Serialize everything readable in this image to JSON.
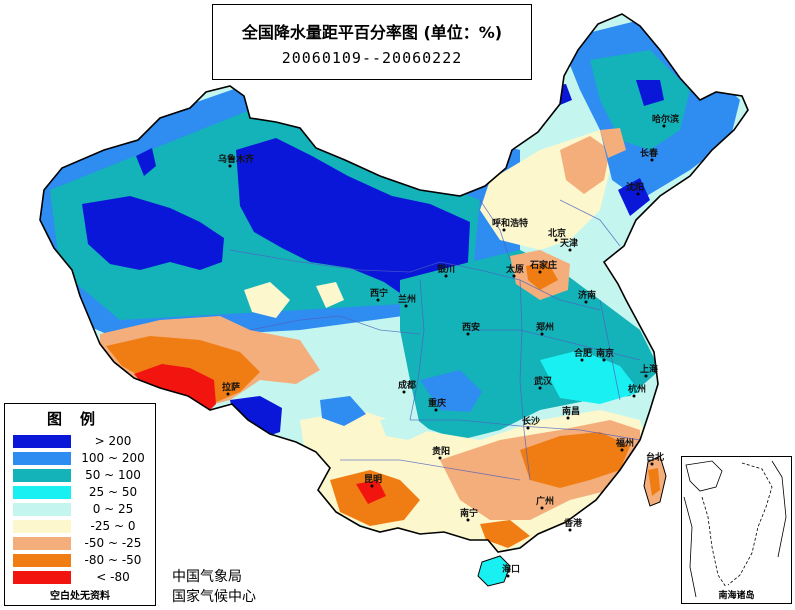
{
  "title": {
    "main": "全国降水量距平百分率图 (单位：%)",
    "period": "20060109--20060222"
  },
  "legend": {
    "title": "图例",
    "items": [
      {
        "label": "> 200",
        "color": "#0a17d8"
      },
      {
        "label": "100 ~ 200",
        "color": "#2f8cf0"
      },
      {
        "label": "50 ~ 100",
        "color": "#13b3b9"
      },
      {
        "label": "25 ~ 50",
        "color": "#19f0f2"
      },
      {
        "label": "0 ~ 25",
        "color": "#c4f6ef"
      },
      {
        "label": "-25 ~ 0",
        "color": "#fcf7cd"
      },
      {
        "label": "-50 ~ -25",
        "color": "#f4ae7b"
      },
      {
        "label": "-80 ~ -50",
        "color": "#f07d14"
      },
      {
        "label": "< -80",
        "color": "#f2140f"
      }
    ],
    "note": "空白处无资料"
  },
  "agency": {
    "line1": "中国气象局",
    "line2": "国家气候中心"
  },
  "inset": {
    "label": "南海诸岛"
  },
  "cities": [
    {
      "name": "乌鲁木齐"
    },
    {
      "name": "哈尔滨"
    },
    {
      "name": "长春"
    },
    {
      "name": "沈阳"
    },
    {
      "name": "呼和浩特"
    },
    {
      "name": "北京"
    },
    {
      "name": "天津"
    },
    {
      "name": "石家庄"
    },
    {
      "name": "太原"
    },
    {
      "name": "银川"
    },
    {
      "name": "西宁"
    },
    {
      "name": "兰州"
    },
    {
      "name": "济南"
    },
    {
      "name": "西安"
    },
    {
      "name": "郑州"
    },
    {
      "name": "合肥"
    },
    {
      "name": "南京"
    },
    {
      "name": "上海"
    },
    {
      "name": "拉萨"
    },
    {
      "name": "成都"
    },
    {
      "name": "武汉"
    },
    {
      "name": "重庆"
    },
    {
      "name": "杭州"
    },
    {
      "name": "长沙"
    },
    {
      "name": "南昌"
    },
    {
      "name": "福州"
    },
    {
      "name": "贵阳"
    },
    {
      "name": "昆明"
    },
    {
      "name": "台北"
    },
    {
      "name": "南宁"
    },
    {
      "name": "广州"
    },
    {
      "name": "香港"
    },
    {
      "name": "海口"
    }
  ]
}
